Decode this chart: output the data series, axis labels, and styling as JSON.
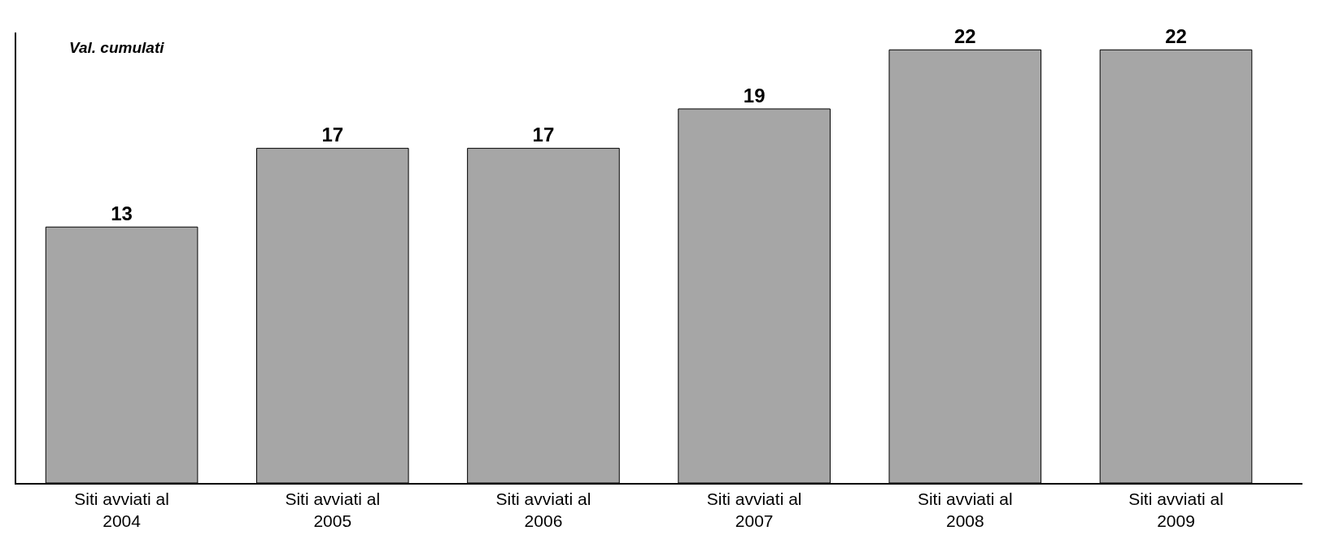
{
  "chart_data": {
    "type": "bar",
    "ylabel": "Val. cumulati",
    "categories": [
      "Siti avviati al 2004",
      "Siti avviati al 2005",
      "Siti avviati al 2006",
      "Siti avviati al 2007",
      "Siti avviati al 2008",
      "Siti avviati al 2009"
    ],
    "values": [
      13,
      17,
      17,
      19,
      22,
      22
    ],
    "color": "#a6a6a6",
    "data_labels": true
  }
}
